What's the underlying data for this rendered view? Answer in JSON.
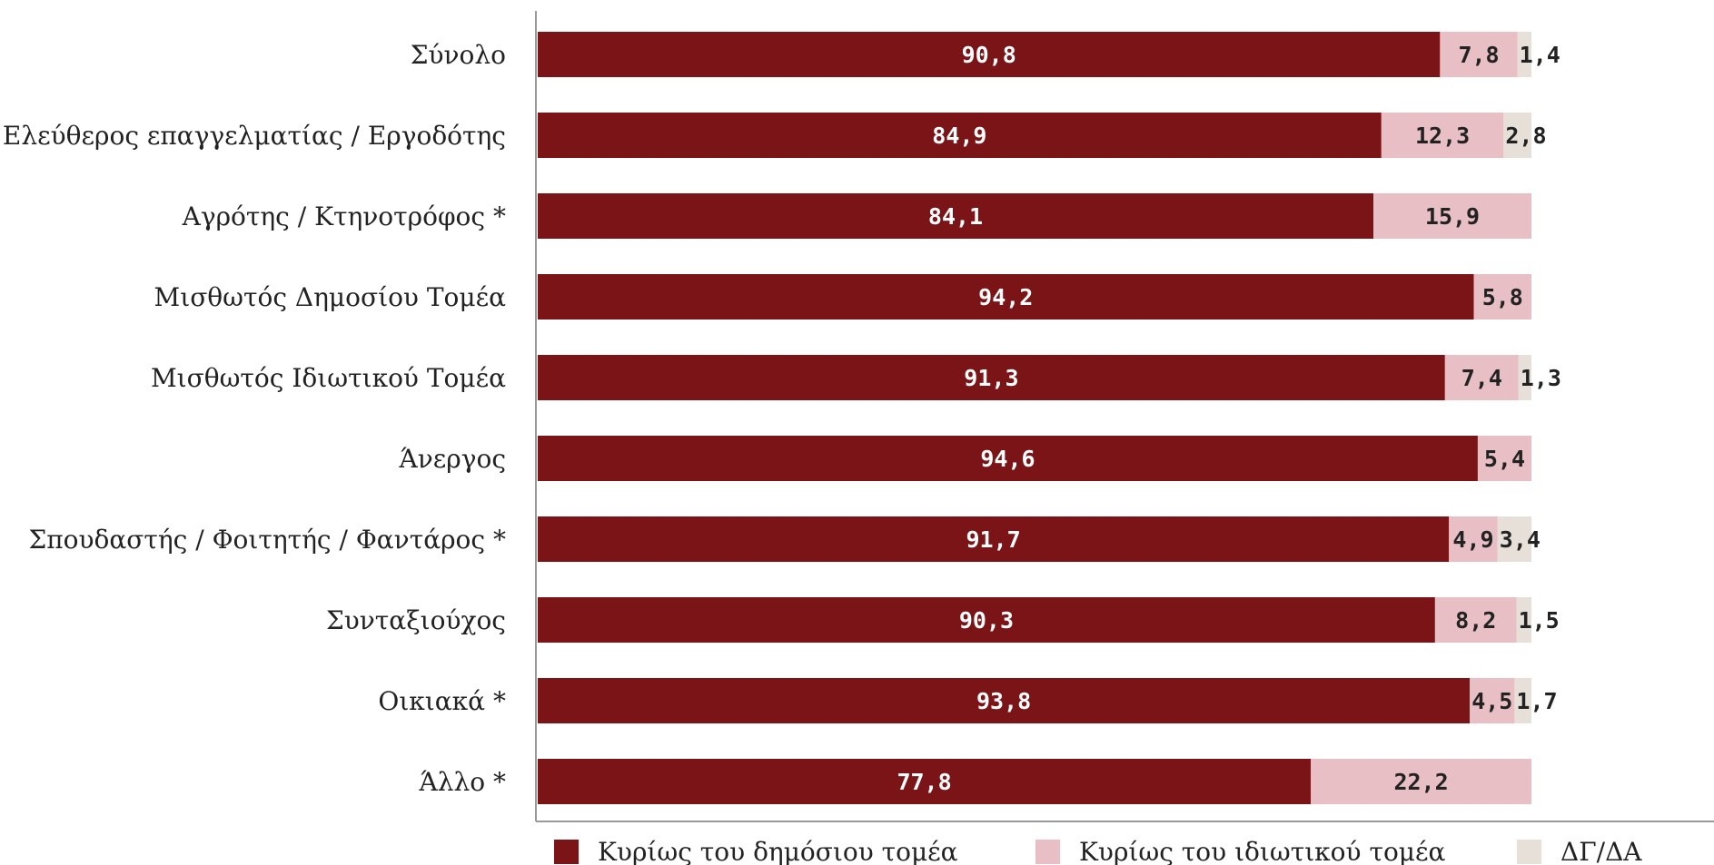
{
  "chart_data": {
    "type": "bar",
    "orientation": "horizontal",
    "stacked": true,
    "title": "",
    "xlabel": "",
    "ylabel": "",
    "xlim": [
      0,
      100
    ],
    "grid": false,
    "legend_position": "bottom",
    "categories": [
      "Σύνολο",
      "Ελεύθερος επαγγελματίας / Εργοδότης",
      "Αγρότης / Κτηνοτρόφος *",
      "Μισθωτός Δημοσίου Τομέα",
      "Μισθωτός Ιδιωτικού Τομέα",
      "Άνεργος",
      "Σπουδαστής / Φοιτητής / Φαντάρος *",
      "Συνταξιούχος",
      "Οικιακά *",
      "Άλλο *"
    ],
    "series": [
      {
        "name": "Κυρίως του δημόσιου τομέα",
        "color": "#7a1417",
        "label_color": "#ffffff",
        "values": [
          90.8,
          84.9,
          84.1,
          94.2,
          91.3,
          94.6,
          91.7,
          90.3,
          93.8,
          77.8
        ],
        "labels": [
          "90,8",
          "84,9",
          "84,1",
          "94,2",
          "91,3",
          "94,6",
          "91,7",
          "90,3",
          "93,8",
          "77,8"
        ]
      },
      {
        "name": "Κυρίως του ιδιωτικού τομέα",
        "color": "#e8bfc4",
        "label_color": "#222222",
        "values": [
          7.8,
          12.3,
          15.9,
          5.8,
          7.4,
          5.4,
          4.9,
          8.2,
          4.5,
          22.2
        ],
        "labels": [
          "7,8",
          "12,3",
          "15,9",
          "5,8",
          "7,4",
          "5,4",
          "4,9",
          "8,2",
          "4,5",
          "22,2"
        ]
      },
      {
        "name": "ΔΓ/ΔΑ",
        "color": "#e6e0d8",
        "label_color": "#222222",
        "values": [
          1.4,
          2.8,
          0,
          0,
          1.3,
          0,
          3.4,
          1.5,
          1.7,
          0
        ],
        "labels": [
          "1,4",
          "2,8",
          "",
          "",
          "1,3",
          "",
          "3,4",
          "1,5",
          "1,7",
          ""
        ]
      }
    ]
  }
}
